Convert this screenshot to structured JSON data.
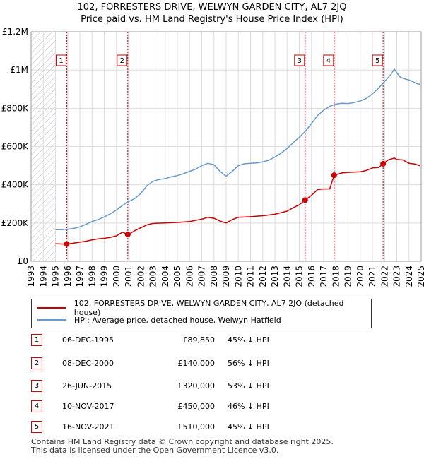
{
  "title_line1": "102, FORRESTERS DRIVE, WELWYN GARDEN CITY, AL7 2JQ",
  "title_line2": "Price paid vs. HM Land Registry's House Price Index (HPI)",
  "colors": {
    "red": "#cc0000",
    "blue": "#6699cc",
    "grid": "#cccccc",
    "shade": "#eef2f8"
  },
  "chart_data": {
    "type": "line",
    "x_range": [
      1993,
      2025
    ],
    "ylim": [
      0,
      1200000
    ],
    "y_ticks": [
      {
        "v": 0,
        "label": "£0"
      },
      {
        "v": 200000,
        "label": "£200K"
      },
      {
        "v": 400000,
        "label": "£400K"
      },
      {
        "v": 600000,
        "label": "£600K"
      },
      {
        "v": 800000,
        "label": "£800K"
      },
      {
        "v": 1000000,
        "label": "£1M"
      },
      {
        "v": 1200000,
        "label": "£1.2M"
      }
    ],
    "x_ticks": [
      "1993",
      "1994",
      "1995",
      "1996",
      "1997",
      "1998",
      "1999",
      "2000",
      "2001",
      "2002",
      "2003",
      "2004",
      "2005",
      "2006",
      "2007",
      "2008",
      "2009",
      "2010",
      "2011",
      "2012",
      "2013",
      "2014",
      "2015",
      "2016",
      "2017",
      "2018",
      "2019",
      "2020",
      "2021",
      "2022",
      "2023",
      "2024",
      "2025"
    ],
    "hatch_ranges": [
      [
        1993,
        1995
      ]
    ],
    "series": [
      {
        "name": "102, FORRESTERS DRIVE, WELWYN GARDEN CITY, AL7 2JQ (detached house)",
        "color": "#cc0000",
        "points": [
          [
            1995.0,
            92000
          ],
          [
            1995.5,
            90500
          ],
          [
            1995.93,
            89850
          ],
          [
            1996.5,
            95000
          ],
          [
            1997.0,
            100000
          ],
          [
            1997.5,
            105000
          ],
          [
            1998.0,
            112000
          ],
          [
            1998.5,
            117000
          ],
          [
            1999.0,
            120000
          ],
          [
            1999.5,
            125000
          ],
          [
            2000.0,
            133000
          ],
          [
            2000.5,
            152000
          ],
          [
            2000.93,
            140000
          ],
          [
            2001.2,
            148000
          ],
          [
            2001.5,
            160000
          ],
          [
            2002.0,
            175000
          ],
          [
            2002.5,
            190000
          ],
          [
            2003.0,
            198000
          ],
          [
            2004.0,
            200000
          ],
          [
            2005.0,
            203000
          ],
          [
            2006.0,
            208000
          ],
          [
            2007.0,
            220000
          ],
          [
            2007.5,
            230000
          ],
          [
            2008.0,
            225000
          ],
          [
            2008.5,
            210000
          ],
          [
            2009.0,
            200000
          ],
          [
            2009.5,
            218000
          ],
          [
            2010.0,
            230000
          ],
          [
            2011.0,
            233000
          ],
          [
            2012.0,
            238000
          ],
          [
            2013.0,
            246000
          ],
          [
            2014.0,
            262000
          ],
          [
            2014.5,
            280000
          ],
          [
            2015.0,
            295000
          ],
          [
            2015.48,
            320000
          ],
          [
            2016.0,
            345000
          ],
          [
            2016.5,
            375000
          ],
          [
            2017.0,
            378000
          ],
          [
            2017.5,
            378000
          ],
          [
            2017.86,
            450000
          ],
          [
            2018.5,
            462000
          ],
          [
            2019.0,
            465000
          ],
          [
            2020.0,
            468000
          ],
          [
            2020.5,
            475000
          ],
          [
            2021.0,
            488000
          ],
          [
            2021.5,
            490000
          ],
          [
            2021.88,
            510000
          ],
          [
            2022.3,
            530000
          ],
          [
            2022.8,
            540000
          ],
          [
            2023.0,
            532000
          ],
          [
            2023.5,
            530000
          ],
          [
            2024.0,
            512000
          ],
          [
            2024.5,
            508000
          ],
          [
            2024.9,
            500000
          ]
        ]
      },
      {
        "name": "HPI: Average price, detached house, Welwyn Hatfield",
        "color": "#6699cc",
        "points": [
          [
            1995.0,
            165000
          ],
          [
            1995.5,
            165000
          ],
          [
            1996.0,
            167000
          ],
          [
            1996.5,
            172000
          ],
          [
            1997.0,
            180000
          ],
          [
            1997.5,
            193000
          ],
          [
            1998.0,
            208000
          ],
          [
            1998.5,
            218000
          ],
          [
            1999.0,
            232000
          ],
          [
            1999.5,
            248000
          ],
          [
            2000.0,
            268000
          ],
          [
            2000.5,
            292000
          ],
          [
            2001.0,
            312000
          ],
          [
            2001.5,
            328000
          ],
          [
            2002.0,
            355000
          ],
          [
            2002.5,
            395000
          ],
          [
            2003.0,
            418000
          ],
          [
            2003.5,
            428000
          ],
          [
            2004.0,
            432000
          ],
          [
            2004.5,
            442000
          ],
          [
            2005.0,
            448000
          ],
          [
            2005.5,
            458000
          ],
          [
            2006.0,
            470000
          ],
          [
            2006.5,
            482000
          ],
          [
            2007.0,
            500000
          ],
          [
            2007.5,
            512000
          ],
          [
            2008.0,
            505000
          ],
          [
            2008.5,
            470000
          ],
          [
            2009.0,
            445000
          ],
          [
            2009.5,
            470000
          ],
          [
            2010.0,
            500000
          ],
          [
            2010.5,
            510000
          ],
          [
            2011.0,
            512000
          ],
          [
            2011.5,
            514000
          ],
          [
            2012.0,
            520000
          ],
          [
            2012.5,
            528000
          ],
          [
            2013.0,
            545000
          ],
          [
            2013.5,
            565000
          ],
          [
            2014.0,
            590000
          ],
          [
            2014.5,
            620000
          ],
          [
            2015.0,
            648000
          ],
          [
            2015.5,
            680000
          ],
          [
            2016.0,
            720000
          ],
          [
            2016.5,
            762000
          ],
          [
            2017.0,
            790000
          ],
          [
            2017.5,
            810000
          ],
          [
            2018.0,
            822000
          ],
          [
            2018.5,
            826000
          ],
          [
            2019.0,
            825000
          ],
          [
            2019.5,
            830000
          ],
          [
            2020.0,
            838000
          ],
          [
            2020.5,
            852000
          ],
          [
            2021.0,
            875000
          ],
          [
            2021.5,
            905000
          ],
          [
            2022.0,
            940000
          ],
          [
            2022.5,
            975000
          ],
          [
            2022.8,
            1005000
          ],
          [
            2023.0,
            985000
          ],
          [
            2023.3,
            962000
          ],
          [
            2023.6,
            955000
          ],
          [
            2024.0,
            948000
          ],
          [
            2024.3,
            940000
          ],
          [
            2024.6,
            930000
          ],
          [
            2024.9,
            925000
          ]
        ]
      }
    ],
    "sales": [
      {
        "n": "1",
        "x": 1995.93,
        "y": 89850
      },
      {
        "n": "2",
        "x": 2000.93,
        "y": 140000
      },
      {
        "n": "3",
        "x": 2015.48,
        "y": 320000
      },
      {
        "n": "4",
        "x": 2017.86,
        "y": 450000
      },
      {
        "n": "5",
        "x": 2021.88,
        "y": 510000
      }
    ]
  },
  "legend": {
    "red_label": "102, FORRESTERS DRIVE, WELWYN GARDEN CITY, AL7 2JQ (detached house)",
    "blue_label": "HPI: Average price, detached house, Welwyn Hatfield"
  },
  "sales_table": [
    {
      "n": "1",
      "date": "06-DEC-1995",
      "price": "£89,850",
      "hpi": "45% ↓ HPI"
    },
    {
      "n": "2",
      "date": "08-DEC-2000",
      "price": "£140,000",
      "hpi": "56% ↓ HPI"
    },
    {
      "n": "3",
      "date": "26-JUN-2015",
      "price": "£320,000",
      "hpi": "53% ↓ HPI"
    },
    {
      "n": "4",
      "date": "10-NOV-2017",
      "price": "£450,000",
      "hpi": "46% ↓ HPI"
    },
    {
      "n": "5",
      "date": "16-NOV-2021",
      "price": "£510,000",
      "hpi": "45% ↓ HPI"
    }
  ],
  "footer_line1": "Contains HM Land Registry data © Crown copyright and database right 2025.",
  "footer_line2": "This data is licensed under the Open Government Licence v3.0."
}
